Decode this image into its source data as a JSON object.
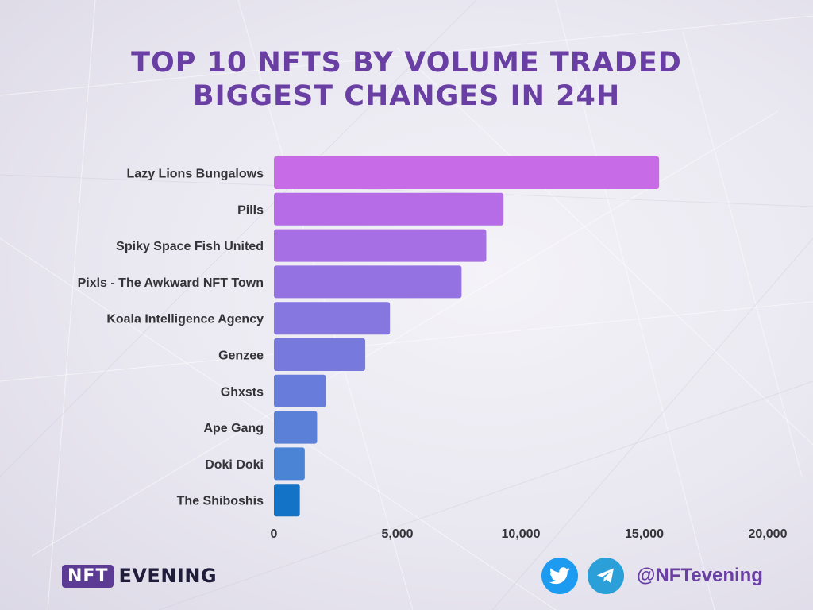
{
  "title": {
    "line1": "TOP 10 NFTS BY VOLUME TRADED",
    "line2": "BIGGEST CHANGES IN 24H"
  },
  "chart_data": {
    "type": "bar",
    "orientation": "horizontal",
    "title": "TOP 10 NFTS BY VOLUME TRADED BIGGEST CHANGES IN 24H",
    "categories": [
      "Lazy Lions Bungalows",
      "Pills",
      "Spiky Space Fish United",
      "Pixls - The Awkward NFT Town",
      "Koala Intelligence Agency",
      "Genzee",
      "Ghxsts",
      "Ape Gang",
      "Doki Doki",
      "The Shiboshis"
    ],
    "values": [
      15600,
      9300,
      8600,
      7600,
      4700,
      3700,
      2100,
      1750,
      1250,
      1050
    ],
    "xlim": [
      0,
      20000
    ],
    "xticks": [
      0,
      5000,
      10000,
      15000,
      20000
    ],
    "xtick_labels": [
      "0",
      "5,000",
      "10,000",
      "15,000",
      "20,000"
    ],
    "grid": false,
    "legend": "none",
    "bar_colors": [
      "#c86be6",
      "#b56ce6",
      "#a66fe4",
      "#9472e2",
      "#8676e0",
      "#7879dd",
      "#687ddb",
      "#5b80d8",
      "#4b84d5",
      "#1273c7"
    ]
  },
  "footer": {
    "brand_box": "NFT",
    "brand_word": "EVENING",
    "handle": "@NFTevening",
    "icons": [
      "twitter-icon",
      "telegram-icon"
    ]
  }
}
